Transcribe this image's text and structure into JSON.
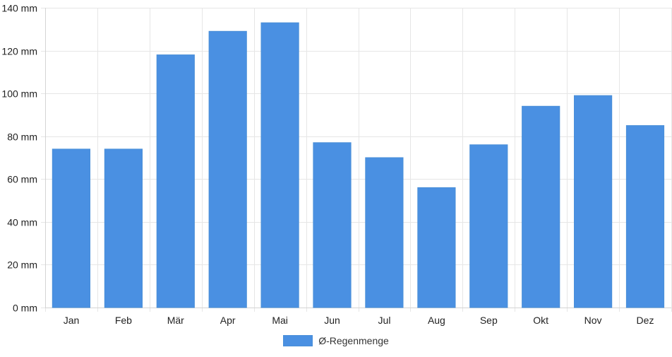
{
  "colors": {
    "bar": "#4a90e2",
    "bar_border": "#4a8fd8",
    "grid": "#e6e6e6",
    "axis": "#d4d4d4"
  },
  "chart_data": {
    "type": "bar",
    "categories": [
      "Jan",
      "Feb",
      "Mär",
      "Apr",
      "Mai",
      "Jun",
      "Jul",
      "Aug",
      "Sep",
      "Okt",
      "Nov",
      "Dez"
    ],
    "series": [
      {
        "name": "Ø-Regenmenge",
        "values": [
          74,
          74,
          118,
          129,
          133,
          77,
          70,
          56,
          76,
          94,
          99,
          85
        ]
      }
    ],
    "yticks": [
      "0 mm",
      "20 mm",
      "40 mm",
      "60 mm",
      "80 mm",
      "100 mm",
      "120 mm",
      "140 mm"
    ],
    "ylim": [
      0,
      140
    ],
    "grid": true,
    "legend_position": "bottom-center"
  }
}
